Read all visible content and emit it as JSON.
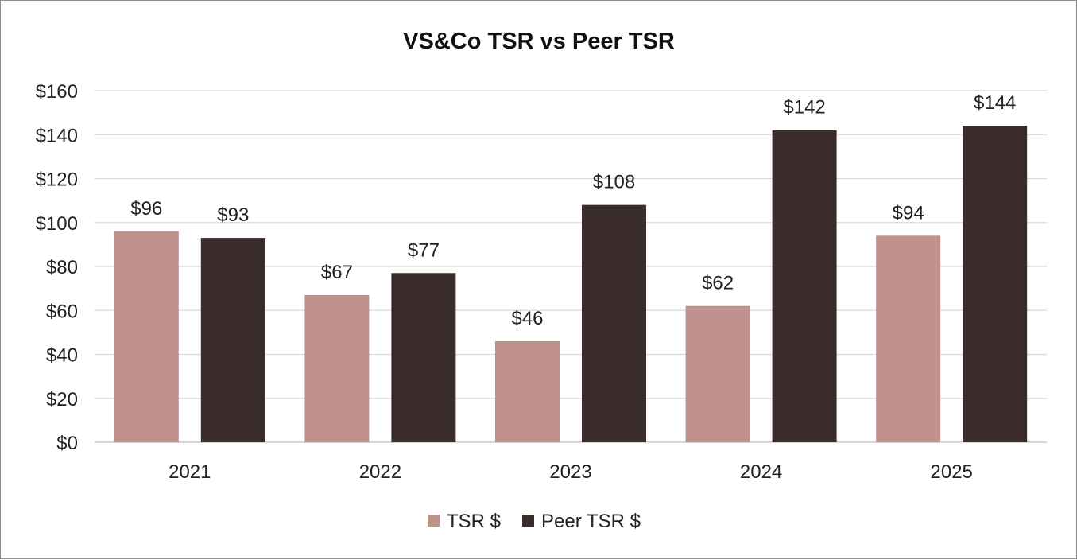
{
  "chart_data": {
    "type": "bar",
    "title": "VS&Co TSR vs Peer TSR",
    "xlabel": "",
    "ylabel": "",
    "categories": [
      "2021",
      "2022",
      "2023",
      "2024",
      "2025"
    ],
    "series": [
      {
        "name": "TSR $",
        "color": "#be918d",
        "values": [
          96,
          67,
          46,
          62,
          94
        ],
        "labels": [
          "$96",
          "$67",
          "$46",
          "$62",
          "$94"
        ]
      },
      {
        "name": "Peer TSR $",
        "color": "#3a2d2b",
        "values": [
          93,
          77,
          108,
          142,
          144
        ],
        "labels": [
          "$93",
          "$77",
          "$108",
          "$142",
          "$144"
        ]
      }
    ],
    "ylim": [
      0,
      160
    ],
    "yticks": [
      0,
      20,
      40,
      60,
      80,
      100,
      120,
      140,
      160
    ],
    "ytick_labels": [
      "$0",
      "$20",
      "$40",
      "$60",
      "$80",
      "$100",
      "$120",
      "$140",
      "$160"
    ],
    "grid": true,
    "legend_position": "bottom"
  }
}
